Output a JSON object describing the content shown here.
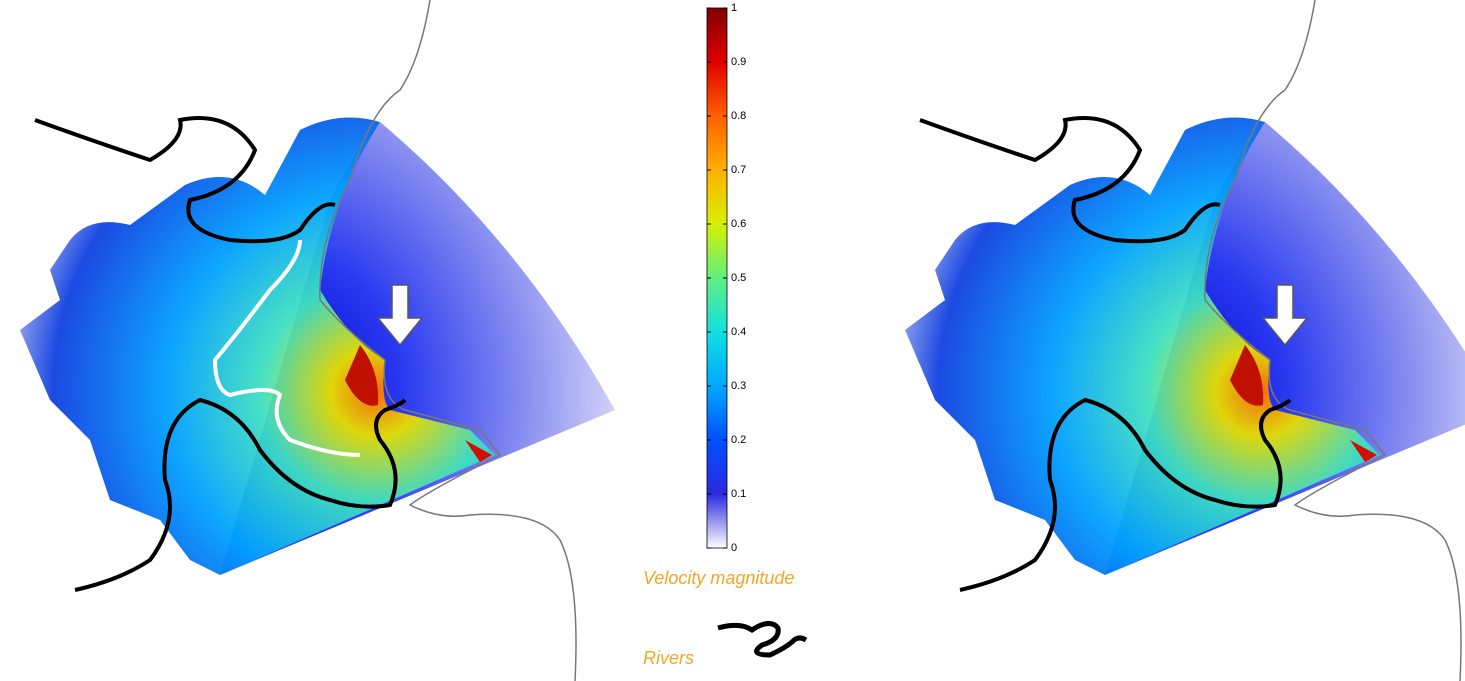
{
  "colorbar": {
    "label": "Velocity magnitude",
    "lim": [
      0,
      1
    ],
    "ticks": [
      0,
      0.1,
      0.2,
      0.3,
      0.4,
      0.5,
      0.6,
      0.7,
      0.8,
      0.9,
      1
    ]
  },
  "legend": {
    "rivers": "Rivers"
  }
}
